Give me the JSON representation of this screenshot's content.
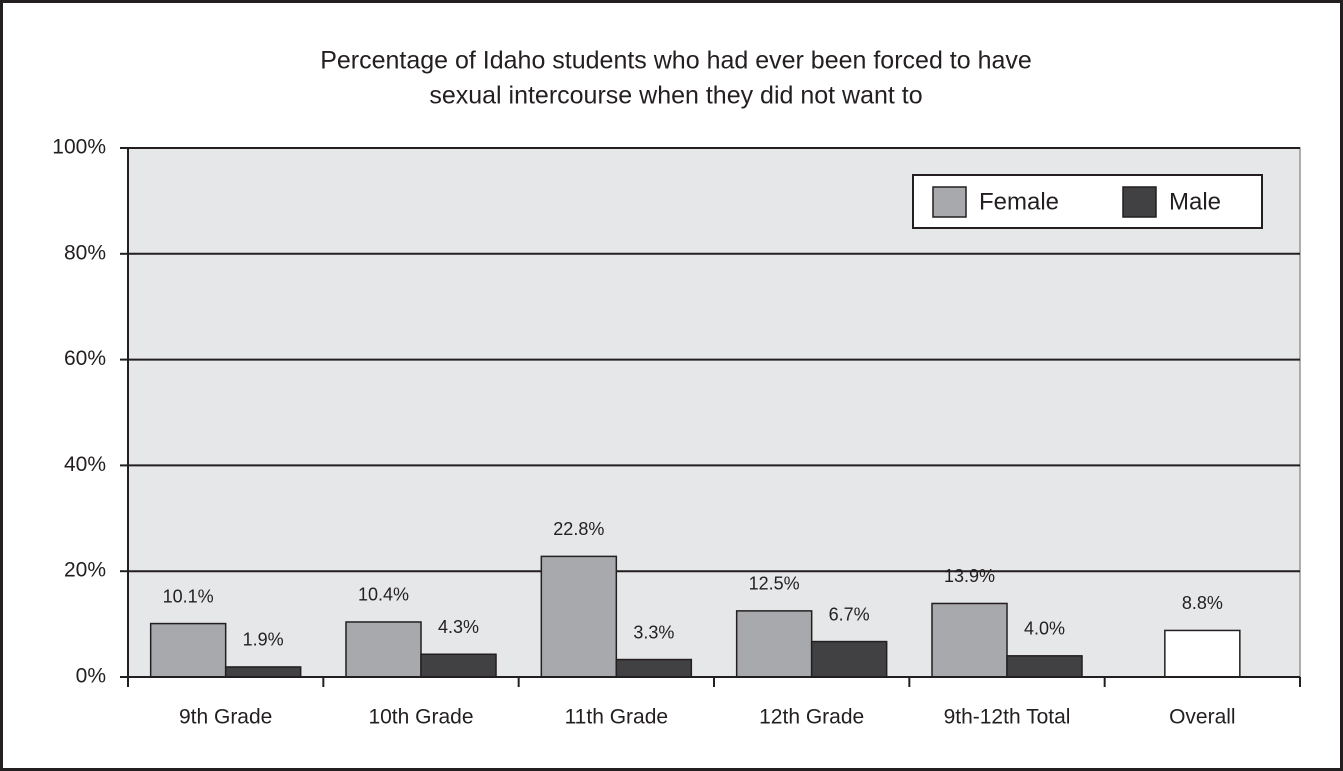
{
  "chart_data": {
    "type": "bar",
    "title": [
      "Percentage of Idaho students who had ever been forced to have",
      "sexual intercourse when they did not want to"
    ],
    "categories": [
      "9th Grade",
      "10th Grade",
      "11th Grade",
      "12th Grade",
      "9th-12th Total",
      "Overall"
    ],
    "series": [
      {
        "name": "Female",
        "color": "#a7a9ac",
        "values": [
          10.1,
          10.4,
          22.8,
          12.5,
          13.9,
          null
        ],
        "value_labels": [
          "10.1%",
          "10.4%",
          "22.8%",
          "12.5%",
          "13.9%",
          null
        ]
      },
      {
        "name": "Male",
        "color": "#414042",
        "values": [
          1.9,
          4.3,
          3.3,
          6.7,
          4.0,
          null
        ],
        "value_labels": [
          "1.9%",
          "4.3%",
          "3.3%",
          "6.7%",
          "4.0%",
          null
        ]
      },
      {
        "color": "#ffffff",
        "values": [
          null,
          null,
          null,
          null,
          null,
          8.8
        ],
        "value_labels": [
          null,
          null,
          null,
          null,
          null,
          "8.8%"
        ]
      }
    ],
    "ylim": [
      0,
      100
    ],
    "yticks": [
      {
        "value": 0,
        "label": "0%"
      },
      {
        "value": 20,
        "label": "20%"
      },
      {
        "value": 40,
        "label": "40%"
      },
      {
        "value": 60,
        "label": "60%"
      },
      {
        "value": 80,
        "label": "80%"
      },
      {
        "value": 100,
        "label": "100%"
      }
    ],
    "grid": true,
    "legend": "top-right"
  }
}
